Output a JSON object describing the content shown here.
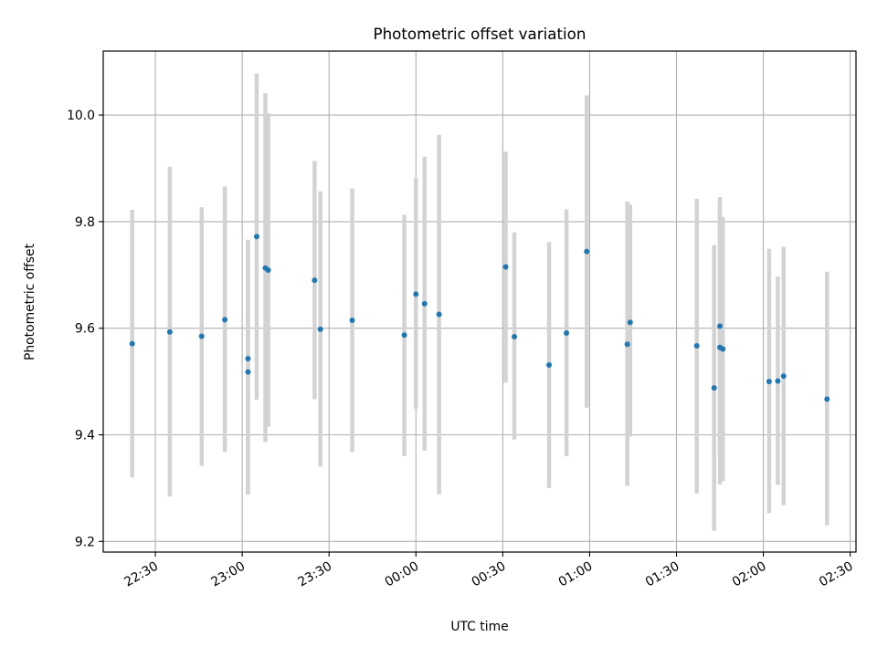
{
  "chart_data": {
    "type": "scatter",
    "title": "Photometric offset variation",
    "xlabel": "UTC time",
    "ylabel": "Photometric offset",
    "x_tick_labels": [
      "22:30",
      "23:00",
      "23:30",
      "00:00",
      "00:30",
      "01:00",
      "01:30",
      "02:00",
      "02:30"
    ],
    "x_tick_times": [
      "2000-01-01T22:30",
      "2000-01-01T23:00",
      "2000-01-01T23:30",
      "2000-01-02T00:00",
      "2000-01-02T00:30",
      "2000-01-02T01:00",
      "2000-01-02T01:30",
      "2000-01-02T02:00",
      "2000-01-02T02:30"
    ],
    "y_ticks": [
      "9.2",
      "9.4",
      "9.6",
      "9.8",
      "10.0"
    ],
    "xlim": [
      "2000-01-01T22:12",
      "2000-01-02T02:32"
    ],
    "ylim": [
      9.18,
      10.12
    ],
    "grid": true,
    "marker_color": "#1f77b4",
    "errorbar_color": "#d3d3d3",
    "points": [
      {
        "time": "2000-01-01T22:22",
        "y": 9.571,
        "low": 9.32,
        "high": 9.822
      },
      {
        "time": "2000-01-01T22:35",
        "y": 9.593,
        "low": 9.284,
        "high": 9.903
      },
      {
        "time": "2000-01-01T22:46",
        "y": 9.585,
        "low": 9.342,
        "high": 9.827
      },
      {
        "time": "2000-01-01T22:54",
        "y": 9.616,
        "low": 9.368,
        "high": 9.866
      },
      {
        "time": "2000-01-01T23:02",
        "y": 9.543,
        "low": 9.288,
        "high": 9.766
      },
      {
        "time": "2000-01-01T23:02",
        "y": 9.518,
        "low": 9.288,
        "high": 9.766
      },
      {
        "time": "2000-01-01T23:05",
        "y": 9.772,
        "low": 9.466,
        "high": 10.078
      },
      {
        "time": "2000-01-01T23:08",
        "y": 9.713,
        "low": 9.386,
        "high": 10.041
      },
      {
        "time": "2000-01-01T23:09",
        "y": 9.709,
        "low": 9.415,
        "high": 10.003
      },
      {
        "time": "2000-01-01T23:25",
        "y": 9.69,
        "low": 9.467,
        "high": 9.914
      },
      {
        "time": "2000-01-01T23:27",
        "y": 9.598,
        "low": 9.34,
        "high": 9.857
      },
      {
        "time": "2000-01-01T23:38",
        "y": 9.615,
        "low": 9.368,
        "high": 9.862
      },
      {
        "time": "2000-01-01T23:56",
        "y": 9.587,
        "low": 9.36,
        "high": 9.813
      },
      {
        "time": "2000-01-02T00:00",
        "y": 9.664,
        "low": 9.449,
        "high": 9.882
      },
      {
        "time": "2000-01-02T00:03",
        "y": 9.646,
        "low": 9.37,
        "high": 9.922
      },
      {
        "time": "2000-01-02T00:08",
        "y": 9.626,
        "low": 9.288,
        "high": 9.963
      },
      {
        "time": "2000-01-02T00:31",
        "y": 9.715,
        "low": 9.498,
        "high": 9.931
      },
      {
        "time": "2000-01-02T00:34",
        "y": 9.584,
        "low": 9.391,
        "high": 9.78
      },
      {
        "time": "2000-01-02T00:46",
        "y": 9.531,
        "low": 9.3,
        "high": 9.762
      },
      {
        "time": "2000-01-02T00:52",
        "y": 9.591,
        "low": 9.36,
        "high": 9.823
      },
      {
        "time": "2000-01-02T00:59",
        "y": 9.744,
        "low": 9.451,
        "high": 10.037
      },
      {
        "time": "2000-01-02T01:13",
        "y": 9.57,
        "low": 9.304,
        "high": 9.838
      },
      {
        "time": "2000-01-02T01:14",
        "y": 9.611,
        "low": 9.397,
        "high": 9.832
      },
      {
        "time": "2000-01-02T01:37",
        "y": 9.567,
        "low": 9.29,
        "high": 9.843
      },
      {
        "time": "2000-01-02T01:43",
        "y": 9.488,
        "low": 9.22,
        "high": 9.756
      },
      {
        "time": "2000-01-02T01:45",
        "y": 9.604,
        "low": 9.362,
        "high": 9.846
      },
      {
        "time": "2000-01-02T01:45",
        "y": 9.564,
        "low": 9.307,
        "high": 9.836
      },
      {
        "time": "2000-01-02T01:46",
        "y": 9.561,
        "low": 9.313,
        "high": 9.809
      },
      {
        "time": "2000-01-02T02:02",
        "y": 9.5,
        "low": 9.253,
        "high": 9.749
      },
      {
        "time": "2000-01-02T02:05",
        "y": 9.501,
        "low": 9.306,
        "high": 9.697
      },
      {
        "time": "2000-01-02T02:07",
        "y": 9.51,
        "low": 9.268,
        "high": 9.753
      },
      {
        "time": "2000-01-02T02:22",
        "y": 9.467,
        "low": 9.23,
        "high": 9.706
      }
    ]
  }
}
